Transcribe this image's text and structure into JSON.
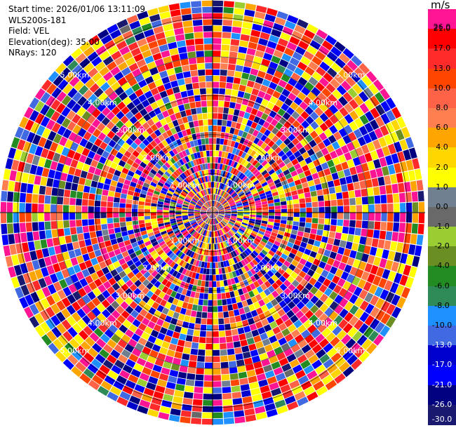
{
  "info": {
    "start_time": "Start time: 2026/01/06 13:11:09",
    "station": "WLS200s-181",
    "field": "Field: VEL",
    "elevation": "Elevation(deg): 35.00",
    "nrays": "NRays: 120"
  },
  "colorbar": {
    "unit": "m/s",
    "ticks": [
      "26.0",
      "21.0",
      "17.0",
      "13.0",
      "10.0",
      "8.0",
      "6.0",
      "4.0",
      "2.0",
      "1.0",
      "0.0",
      "-1.0",
      "-2.0",
      "-4.0",
      "-6.0",
      "-8.0",
      "-10.0",
      "-13.0",
      "-17.0",
      "-21.0",
      "-26.0",
      "-30.0"
    ],
    "colors": [
      "#ff1493",
      "#ff0000",
      "#ff2a2a",
      "#ff4500",
      "#ff6347",
      "#ff7f50",
      "#ffa500",
      "#ffd700",
      "#ffff00",
      "#708090",
      "#696969",
      "#9acd32",
      "#6b8e23",
      "#228b22",
      "#2e8b57",
      "#1e90ff",
      "#4169e1",
      "#0000cd",
      "#0000ff",
      "#000080",
      "#191970"
    ]
  },
  "chart_data": {
    "type": "heatmap",
    "projection": "polar (PPI)",
    "field": "VEL",
    "units": "m/s",
    "nrays": 120,
    "elevation_deg": 35.0,
    "range_rings_km": [
      1,
      2,
      3,
      4,
      5
    ],
    "range_ring_labels": [
      "1.00km",
      "2.00km",
      "3.00km",
      "4.00km",
      "5.00km"
    ],
    "value_range": [
      -30,
      26
    ],
    "grid": true
  }
}
